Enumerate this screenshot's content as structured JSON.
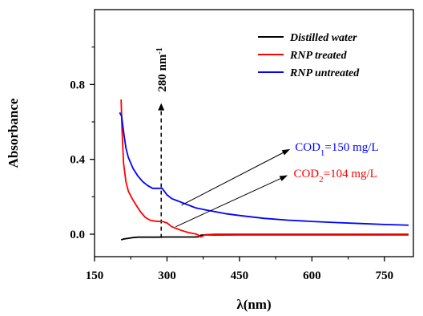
{
  "chart_data": {
    "type": "line",
    "xlabel": "λ(nm)",
    "ylabel": "Absorbance",
    "xlim": [
      150,
      810
    ],
    "ylim": [
      -0.12,
      1.2
    ],
    "xticks": [
      150,
      300,
      450,
      600,
      750
    ],
    "yticks": [
      0.0,
      0.4,
      0.8
    ],
    "ytick_labels": [
      "0.0",
      "0.4",
      "0.8"
    ],
    "legend_position": "top-right",
    "series": [
      {
        "name": "Distilled water",
        "color": "#000000",
        "x": [
          205,
          212,
          220,
          230,
          240,
          260,
          280,
          300,
          320,
          340,
          355,
          365,
          370,
          380,
          400,
          450,
          500,
          550,
          600,
          650,
          700,
          750,
          800
        ],
        "y": [
          -0.03,
          -0.025,
          -0.022,
          -0.018,
          -0.016,
          -0.016,
          -0.016,
          -0.015,
          -0.015,
          -0.015,
          -0.015,
          -0.014,
          -0.005,
          -0.004,
          -0.004,
          -0.003,
          -0.003,
          -0.003,
          -0.003,
          -0.003,
          -0.003,
          -0.003,
          -0.003
        ]
      },
      {
        "name": "RNP treated",
        "color": "#ff0000",
        "x": [
          205,
          207,
          210,
          215,
          220,
          228,
          235,
          245,
          255,
          265,
          275,
          285,
          292,
          300,
          310,
          320,
          330,
          340,
          350,
          360,
          365,
          370,
          380,
          400,
          450,
          500,
          550,
          600,
          650,
          700,
          750,
          800
        ],
        "y": [
          0.72,
          0.55,
          0.38,
          0.28,
          0.23,
          0.19,
          0.16,
          0.12,
          0.09,
          0.075,
          0.07,
          0.068,
          0.067,
          0.06,
          0.04,
          0.03,
          0.02,
          0.012,
          0.006,
          0.001,
          -0.005,
          -0.015,
          -0.002,
          0.0,
          0.0,
          0.0,
          0.0,
          0.0,
          0.0,
          0.0,
          0.0,
          0.0
        ]
      },
      {
        "name": "RNP untreated",
        "color": "#0000ff",
        "x": [
          202,
          206,
          210,
          215,
          220,
          225,
          230,
          240,
          250,
          260,
          270,
          280,
          290,
          300,
          310,
          320,
          330,
          340,
          350,
          360,
          380,
          400,
          420,
          450,
          500,
          550,
          600,
          650,
          700,
          750,
          800
        ],
        "y": [
          0.65,
          0.63,
          0.55,
          0.46,
          0.41,
          0.38,
          0.35,
          0.31,
          0.28,
          0.26,
          0.245,
          0.245,
          0.245,
          0.21,
          0.19,
          0.18,
          0.17,
          0.16,
          0.15,
          0.14,
          0.13,
          0.12,
          0.11,
          0.1,
          0.085,
          0.075,
          0.068,
          0.062,
          0.057,
          0.052,
          0.048
        ]
      }
    ],
    "annotations": {
      "marker_label": "280 nm",
      "marker_superscript": "-1",
      "marker_x": 288,
      "cod1": {
        "prefix": "COD",
        "sub": "1",
        "suffix": "=150 mg/L",
        "color": "#0000ff"
      },
      "cod2": {
        "prefix": "COD",
        "sub": "2",
        "suffix": "=104 mg/L",
        "color": "#ff0000"
      }
    }
  }
}
